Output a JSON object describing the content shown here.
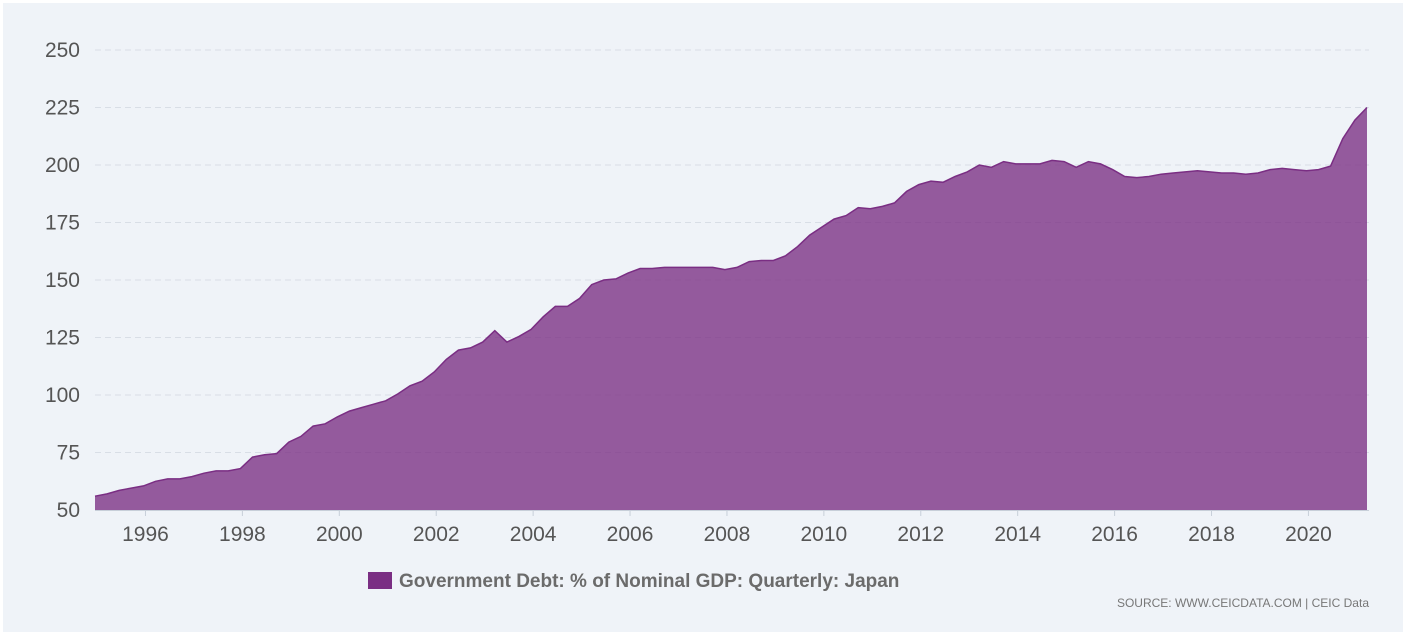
{
  "chart_data": {
    "type": "area",
    "title": "",
    "xlabel": "",
    "ylabel": "",
    "ylim": [
      50,
      250
    ],
    "y_ticks": [
      50,
      75,
      100,
      125,
      150,
      175,
      200,
      225,
      250
    ],
    "x_ticks": [
      "1996",
      "1998",
      "2000",
      "2002",
      "2004",
      "2006",
      "2008",
      "2010",
      "2012",
      "2014",
      "2016",
      "2018",
      "2020"
    ],
    "xlim": [
      "1994-12",
      "2020-12"
    ],
    "grid": true,
    "legend_position": "bottom",
    "color": "#7a2e83",
    "series": [
      {
        "name": "Government Debt: % of Nominal GDP: Quarterly: Japan",
        "points": [
          [
            "1994-12",
            56
          ],
          [
            "1995-03",
            57
          ],
          [
            "1995-06",
            58.5
          ],
          [
            "1995-09",
            59.5
          ],
          [
            "1995-12",
            60.5
          ],
          [
            "1996-03",
            62.5
          ],
          [
            "1996-06",
            63.5
          ],
          [
            "1996-09",
            63.5
          ],
          [
            "1996-12",
            64.5
          ],
          [
            "1997-03",
            66
          ],
          [
            "1997-06",
            67
          ],
          [
            "1997-09",
            67
          ],
          [
            "1997-12",
            68
          ],
          [
            "1998-03",
            73
          ],
          [
            "1998-06",
            74
          ],
          [
            "1998-09",
            74.5
          ],
          [
            "1998-12",
            79.5
          ],
          [
            "1999-03",
            82
          ],
          [
            "1999-06",
            86.5
          ],
          [
            "1999-09",
            87.5
          ],
          [
            "1999-12",
            90.5
          ],
          [
            "2000-03",
            93
          ],
          [
            "2000-06",
            94.5
          ],
          [
            "2000-09",
            96
          ],
          [
            "2000-12",
            97.5
          ],
          [
            "2001-03",
            100.5
          ],
          [
            "2001-06",
            104
          ],
          [
            "2001-09",
            106
          ],
          [
            "2001-12",
            110
          ],
          [
            "2002-03",
            115.5
          ],
          [
            "2002-06",
            119.5
          ],
          [
            "2002-09",
            120.5
          ],
          [
            "2002-12",
            123
          ],
          [
            "2003-03",
            128
          ],
          [
            "2003-06",
            123
          ],
          [
            "2003-09",
            125.5
          ],
          [
            "2003-12",
            128.5
          ],
          [
            "2004-03",
            134
          ],
          [
            "2004-06",
            138.5
          ],
          [
            "2004-09",
            138.5
          ],
          [
            "2004-12",
            142
          ],
          [
            "2005-03",
            148
          ],
          [
            "2005-06",
            150
          ],
          [
            "2005-09",
            150.5
          ],
          [
            "2005-12",
            153
          ],
          [
            "2006-03",
            155
          ],
          [
            "2006-06",
            155
          ],
          [
            "2006-09",
            155.5
          ],
          [
            "2006-12",
            155.5
          ],
          [
            "2007-03",
            155.5
          ],
          [
            "2007-06",
            155.5
          ],
          [
            "2007-09",
            155.5
          ],
          [
            "2007-12",
            154.5
          ],
          [
            "2008-03",
            155.5
          ],
          [
            "2008-06",
            158
          ],
          [
            "2008-09",
            158.5
          ],
          [
            "2008-12",
            158.5
          ],
          [
            "2009-03",
            160.5
          ],
          [
            "2009-06",
            164.5
          ],
          [
            "2009-09",
            169.5
          ],
          [
            "2009-12",
            173
          ],
          [
            "2010-03",
            176.5
          ],
          [
            "2010-06",
            178
          ],
          [
            "2010-09",
            181.5
          ],
          [
            "2010-12",
            181
          ],
          [
            "2011-03",
            182
          ],
          [
            "2011-06",
            183.5
          ],
          [
            "2011-09",
            188.5
          ],
          [
            "2011-12",
            191.5
          ],
          [
            "2012-03",
            193
          ],
          [
            "2012-06",
            192.5
          ],
          [
            "2012-09",
            195
          ],
          [
            "2012-12",
            197
          ],
          [
            "2013-03",
            200
          ],
          [
            "2013-06",
            199
          ],
          [
            "2013-09",
            201.5
          ],
          [
            "2013-12",
            200.5
          ],
          [
            "2014-03",
            200.5
          ],
          [
            "2014-06",
            200.5
          ],
          [
            "2014-09",
            202
          ],
          [
            "2014-12",
            201.5
          ],
          [
            "2015-03",
            199
          ],
          [
            "2015-06",
            201.5
          ],
          [
            "2015-09",
            200.5
          ],
          [
            "2015-12",
            198
          ],
          [
            "2016-03",
            195
          ],
          [
            "2016-06",
            194.5
          ],
          [
            "2016-09",
            195
          ],
          [
            "2016-12",
            196
          ],
          [
            "2017-03",
            196.5
          ],
          [
            "2017-06",
            197
          ],
          [
            "2017-09",
            197.5
          ],
          [
            "2017-12",
            197
          ],
          [
            "2018-03",
            196.5
          ],
          [
            "2018-06",
            196.5
          ],
          [
            "2018-09",
            196
          ],
          [
            "2018-12",
            196.5
          ],
          [
            "2019-03",
            198
          ],
          [
            "2019-06",
            198.5
          ],
          [
            "2019-09",
            198
          ],
          [
            "2019-12",
            197.5
          ],
          [
            "2020-03",
            198
          ],
          [
            "2020-06",
            199.5
          ],
          [
            "2020-09",
            211.5
          ],
          [
            "2020-12",
            219.5
          ],
          [
            "2021-03",
            225
          ]
        ]
      }
    ]
  },
  "source_text": "SOURCE: WWW.CEICDATA.COM | CEIC Data"
}
